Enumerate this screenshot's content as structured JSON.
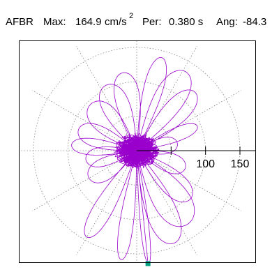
{
  "header": {
    "station": "AFBR",
    "max_label": "Max:",
    "max_value": "164.9",
    "max_unit": "cm/s",
    "max_exp": "2",
    "per_label": "Per:",
    "per_value": "0.380 s",
    "ang_label": "Ang:",
    "ang_value": "-84.3"
  },
  "colors": {
    "trace": "#9900cc",
    "grid": "#888888",
    "marker": "#00a080",
    "frame": "#000000"
  },
  "chart_data": {
    "type": "scatter",
    "coordinate_system": "polar",
    "radial_ticks": [
      50,
      100,
      150
    ],
    "radial_tick_labels": [
      "100",
      "150"
    ],
    "radial_grid_circles": [
      50,
      100,
      150
    ],
    "angular_grid_step_deg": 30,
    "rmax": 175,
    "grid": true,
    "peak": {
      "magnitude": 164.9,
      "angle_deg": -84.3
    },
    "trajectory_lobes": [
      {
        "a": 22,
        "len": 95,
        "wid": 10
      },
      {
        "a": 45,
        "len": 120,
        "wid": 18
      },
      {
        "a": 58,
        "len": 135,
        "wid": 22
      },
      {
        "a": 75,
        "len": 140,
        "wid": 14
      },
      {
        "a": 100,
        "len": 115,
        "wid": 18
      },
      {
        "a": 115,
        "len": 105,
        "wid": 20
      },
      {
        "a": 135,
        "len": 95,
        "wid": 20
      },
      {
        "a": 160,
        "len": 90,
        "wid": 16
      },
      {
        "a": 175,
        "len": 95,
        "wid": 12
      },
      {
        "a": 190,
        "len": 75,
        "wid": 14
      },
      {
        "a": 210,
        "len": 80,
        "wid": 16
      },
      {
        "a": 240,
        "len": 145,
        "wid": 14
      },
      {
        "a": 262,
        "len": 160,
        "wid": 10
      },
      {
        "a": 276,
        "len": 164.9,
        "wid": 6
      },
      {
        "a": 292,
        "len": 145,
        "wid": 22
      },
      {
        "a": 305,
        "len": 130,
        "wid": 26
      },
      {
        "a": 318,
        "len": 105,
        "wid": 18
      },
      {
        "a": 340,
        "len": 75,
        "wid": 14
      },
      {
        "a": 10,
        "len": 60,
        "wid": 12
      }
    ]
  }
}
